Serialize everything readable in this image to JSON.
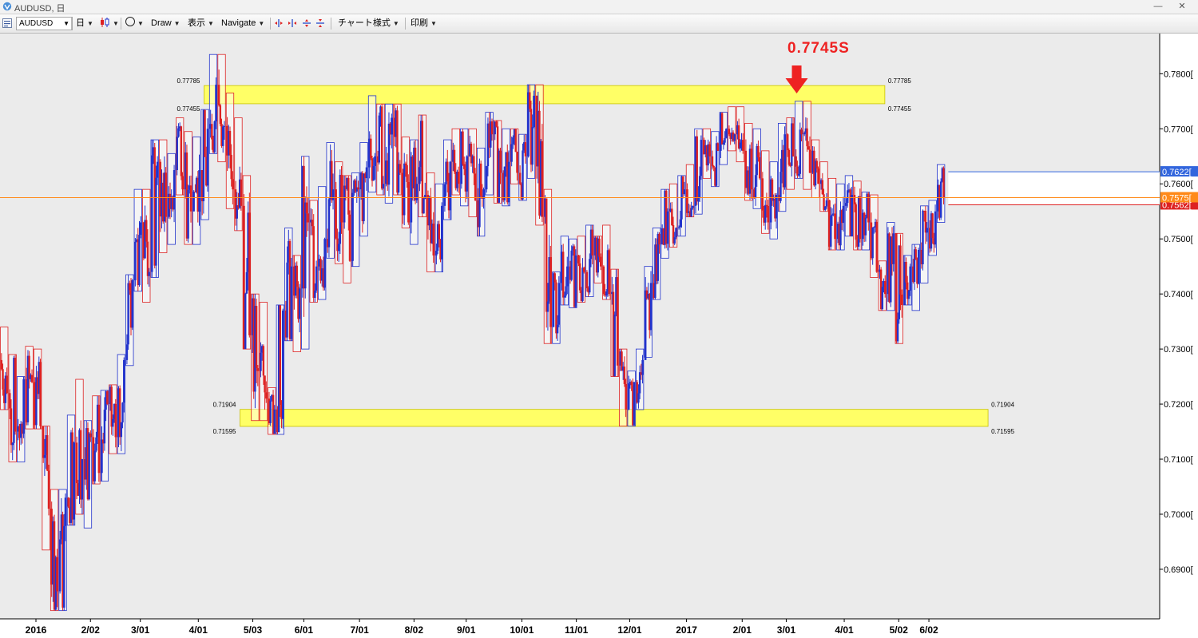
{
  "window": {
    "title": "AUDUSD, 日",
    "minimize": "—",
    "close": "✕"
  },
  "toolbar": {
    "symbol": "AUDUSD",
    "timeframe": "日",
    "draw": "Draw",
    "display": "表示",
    "navigate": "Navigate",
    "chart_style": "チャート様式",
    "print": "印刷"
  },
  "annotations": {
    "arrow_label": "0.7745S"
  },
  "colors": {
    "up": "#2233cc",
    "down": "#dd2222",
    "zone": "#ffff66",
    "price_line": "#ff8a1a",
    "current_label": "#ff8a1a",
    "high_label": "#3366dd",
    "low_label": "#dd2222",
    "arrow": "#ee2222"
  },
  "chart_data": {
    "type": "candlestick",
    "title": "",
    "ylim": [
      0.681,
      0.787
    ],
    "y_ticks": [
      "0.6900",
      "0.7000",
      "0.7100",
      "0.7200",
      "0.7300",
      "0.7400",
      "0.7500",
      "0.7600",
      "0.7700",
      "0.7800"
    ],
    "x_ticks": [
      "2016",
      "2/02",
      "3/01",
      "4/01",
      "5/03",
      "6/01",
      "7/01",
      "8/02",
      "9/01",
      "10/01",
      "11/01",
      "12/01",
      "2017",
      "2/01",
      "3/01",
      "4/01",
      "5/02",
      "6/02"
    ],
    "zones": [
      {
        "upper": 0.77785,
        "lower": 0.77455,
        "upper_label": "0.77785",
        "lower_label": "0.77455",
        "from": "4/01",
        "to": "4/01-2017"
      },
      {
        "upper": 0.71904,
        "lower": 0.71595,
        "upper_label": "0.71904",
        "lower_label": "0.71595",
        "from": "5/03",
        "to": "5/02-2017"
      }
    ],
    "current_price": 0.7575,
    "price_labels": {
      "high": "0.7622[",
      "current": "0.7575[",
      "low": "0.7562["
    },
    "last_range": {
      "high": 0.7622,
      "low": 0.7562
    },
    "weekly_ranges": [
      {
        "o": 0.728,
        "h": 0.734,
        "l": 0.719,
        "c": 0.722
      },
      {
        "o": 0.722,
        "h": 0.729,
        "l": 0.7095,
        "c": 0.715
      },
      {
        "o": 0.715,
        "h": 0.725,
        "l": 0.7095,
        "c": 0.7245
      },
      {
        "o": 0.7245,
        "h": 0.7305,
        "l": 0.7155,
        "c": 0.724
      },
      {
        "o": 0.724,
        "h": 0.73,
        "l": 0.7155,
        "c": 0.716
      },
      {
        "o": 0.716,
        "h": 0.716,
        "l": 0.6935,
        "c": 0.701
      },
      {
        "o": 0.701,
        "h": 0.7045,
        "l": 0.6825,
        "c": 0.686
      },
      {
        "o": 0.686,
        "h": 0.7045,
        "l": 0.6825,
        "c": 0.703
      },
      {
        "o": 0.703,
        "h": 0.718,
        "l": 0.698,
        "c": 0.713
      },
      {
        "o": 0.713,
        "h": 0.7245,
        "l": 0.7,
        "c": 0.71
      },
      {
        "o": 0.71,
        "h": 0.717,
        "l": 0.6975,
        "c": 0.714
      },
      {
        "o": 0.714,
        "h": 0.7215,
        "l": 0.7055,
        "c": 0.7075
      },
      {
        "o": 0.7075,
        "h": 0.7225,
        "l": 0.706,
        "c": 0.72
      },
      {
        "o": 0.72,
        "h": 0.7235,
        "l": 0.711,
        "c": 0.714
      },
      {
        "o": 0.714,
        "h": 0.729,
        "l": 0.711,
        "c": 0.728
      },
      {
        "o": 0.728,
        "h": 0.7435,
        "l": 0.727,
        "c": 0.7425
      },
      {
        "o": 0.7425,
        "h": 0.759,
        "l": 0.7405,
        "c": 0.753
      },
      {
        "o": 0.753,
        "h": 0.759,
        "l": 0.7385,
        "c": 0.744
      },
      {
        "o": 0.744,
        "h": 0.768,
        "l": 0.743,
        "c": 0.764
      },
      {
        "o": 0.764,
        "h": 0.768,
        "l": 0.7475,
        "c": 0.754
      },
      {
        "o": 0.754,
        "h": 0.7655,
        "l": 0.749,
        "c": 0.7625
      },
      {
        "o": 0.7625,
        "h": 0.772,
        "l": 0.758,
        "c": 0.759
      },
      {
        "o": 0.759,
        "h": 0.7695,
        "l": 0.749,
        "c": 0.755
      },
      {
        "o": 0.755,
        "h": 0.7685,
        "l": 0.749,
        "c": 0.7625
      },
      {
        "o": 0.7625,
        "h": 0.7735,
        "l": 0.7535,
        "c": 0.77
      },
      {
        "o": 0.77,
        "h": 0.7835,
        "l": 0.7655,
        "c": 0.778
      },
      {
        "o": 0.778,
        "h": 0.7835,
        "l": 0.764,
        "c": 0.7705
      },
      {
        "o": 0.7705,
        "h": 0.7765,
        "l": 0.7555,
        "c": 0.759
      },
      {
        "o": 0.759,
        "h": 0.772,
        "l": 0.7515,
        "c": 0.756
      },
      {
        "o": 0.756,
        "h": 0.7615,
        "l": 0.73,
        "c": 0.7325
      },
      {
        "o": 0.7325,
        "h": 0.74,
        "l": 0.717,
        "c": 0.726
      },
      {
        "o": 0.726,
        "h": 0.7385,
        "l": 0.717,
        "c": 0.721
      },
      {
        "o": 0.721,
        "h": 0.723,
        "l": 0.7145,
        "c": 0.719
      },
      {
        "o": 0.719,
        "h": 0.738,
        "l": 0.7145,
        "c": 0.737
      },
      {
        "o": 0.737,
        "h": 0.752,
        "l": 0.7315,
        "c": 0.745
      },
      {
        "o": 0.745,
        "h": 0.747,
        "l": 0.7295,
        "c": 0.741
      },
      {
        "o": 0.741,
        "h": 0.765,
        "l": 0.73,
        "c": 0.753
      },
      {
        "o": 0.753,
        "h": 0.757,
        "l": 0.7385,
        "c": 0.745
      },
      {
        "o": 0.745,
        "h": 0.7595,
        "l": 0.739,
        "c": 0.75
      },
      {
        "o": 0.75,
        "h": 0.7675,
        "l": 0.7465,
        "c": 0.759
      },
      {
        "o": 0.759,
        "h": 0.764,
        "l": 0.7455,
        "c": 0.753
      },
      {
        "o": 0.753,
        "h": 0.7615,
        "l": 0.742,
        "c": 0.746
      },
      {
        "o": 0.746,
        "h": 0.762,
        "l": 0.745,
        "c": 0.759
      },
      {
        "o": 0.759,
        "h": 0.7675,
        "l": 0.7505,
        "c": 0.763
      },
      {
        "o": 0.763,
        "h": 0.776,
        "l": 0.7585,
        "c": 0.765
      },
      {
        "o": 0.765,
        "h": 0.7745,
        "l": 0.758,
        "c": 0.76
      },
      {
        "o": 0.76,
        "h": 0.7745,
        "l": 0.7565,
        "c": 0.772
      },
      {
        "o": 0.772,
        "h": 0.7745,
        "l": 0.758,
        "c": 0.762
      },
      {
        "o": 0.762,
        "h": 0.7685,
        "l": 0.752,
        "c": 0.753
      },
      {
        "o": 0.753,
        "h": 0.768,
        "l": 0.749,
        "c": 0.76
      },
      {
        "o": 0.76,
        "h": 0.7725,
        "l": 0.754,
        "c": 0.758
      },
      {
        "o": 0.758,
        "h": 0.762,
        "l": 0.744,
        "c": 0.747
      },
      {
        "o": 0.747,
        "h": 0.76,
        "l": 0.744,
        "c": 0.756
      },
      {
        "o": 0.756,
        "h": 0.768,
        "l": 0.7535,
        "c": 0.764
      },
      {
        "o": 0.764,
        "h": 0.77,
        "l": 0.758,
        "c": 0.76
      },
      {
        "o": 0.76,
        "h": 0.77,
        "l": 0.756,
        "c": 0.765
      },
      {
        "o": 0.765,
        "h": 0.77,
        "l": 0.754,
        "c": 0.757
      },
      {
        "o": 0.757,
        "h": 0.7665,
        "l": 0.7505,
        "c": 0.759
      },
      {
        "o": 0.759,
        "h": 0.773,
        "l": 0.758,
        "c": 0.769
      },
      {
        "o": 0.769,
        "h": 0.7715,
        "l": 0.7565,
        "c": 0.762
      },
      {
        "o": 0.762,
        "h": 0.77,
        "l": 0.756,
        "c": 0.764
      },
      {
        "o": 0.764,
        "h": 0.77,
        "l": 0.76,
        "c": 0.762
      },
      {
        "o": 0.762,
        "h": 0.769,
        "l": 0.757,
        "c": 0.765
      },
      {
        "o": 0.765,
        "h": 0.778,
        "l": 0.761,
        "c": 0.776
      },
      {
        "o": 0.776,
        "h": 0.778,
        "l": 0.7525,
        "c": 0.754
      },
      {
        "o": 0.754,
        "h": 0.759,
        "l": 0.731,
        "c": 0.734
      },
      {
        "o": 0.734,
        "h": 0.744,
        "l": 0.731,
        "c": 0.742
      },
      {
        "o": 0.742,
        "h": 0.7505,
        "l": 0.738,
        "c": 0.745
      },
      {
        "o": 0.745,
        "h": 0.75,
        "l": 0.7375,
        "c": 0.747
      },
      {
        "o": 0.747,
        "h": 0.7505,
        "l": 0.7385,
        "c": 0.744
      },
      {
        "o": 0.744,
        "h": 0.7525,
        "l": 0.7395,
        "c": 0.747
      },
      {
        "o": 0.747,
        "h": 0.7505,
        "l": 0.742,
        "c": 0.745
      },
      {
        "o": 0.745,
        "h": 0.7525,
        "l": 0.739,
        "c": 0.74
      },
      {
        "o": 0.74,
        "h": 0.7445,
        "l": 0.725,
        "c": 0.727
      },
      {
        "o": 0.727,
        "h": 0.73,
        "l": 0.716,
        "c": 0.719
      },
      {
        "o": 0.719,
        "h": 0.726,
        "l": 0.716,
        "c": 0.724
      },
      {
        "o": 0.724,
        "h": 0.73,
        "l": 0.719,
        "c": 0.728
      },
      {
        "o": 0.728,
        "h": 0.745,
        "l": 0.7285,
        "c": 0.742
      },
      {
        "o": 0.742,
        "h": 0.752,
        "l": 0.739,
        "c": 0.749
      },
      {
        "o": 0.749,
        "h": 0.759,
        "l": 0.7465,
        "c": 0.755
      },
      {
        "o": 0.755,
        "h": 0.76,
        "l": 0.7485,
        "c": 0.752
      },
      {
        "o": 0.752,
        "h": 0.7615,
        "l": 0.7505,
        "c": 0.759
      },
      {
        "o": 0.759,
        "h": 0.7635,
        "l": 0.754,
        "c": 0.756
      },
      {
        "o": 0.756,
        "h": 0.77,
        "l": 0.7545,
        "c": 0.768
      },
      {
        "o": 0.768,
        "h": 0.77,
        "l": 0.761,
        "c": 0.765
      },
      {
        "o": 0.765,
        "h": 0.7695,
        "l": 0.7595,
        "c": 0.766
      },
      {
        "o": 0.766,
        "h": 0.773,
        "l": 0.7635,
        "c": 0.77
      },
      {
        "o": 0.77,
        "h": 0.774,
        "l": 0.766,
        "c": 0.769
      },
      {
        "o": 0.769,
        "h": 0.774,
        "l": 0.764,
        "c": 0.766
      },
      {
        "o": 0.766,
        "h": 0.771,
        "l": 0.757,
        "c": 0.759
      },
      {
        "o": 0.759,
        "h": 0.77,
        "l": 0.7555,
        "c": 0.761
      },
      {
        "o": 0.761,
        "h": 0.766,
        "l": 0.751,
        "c": 0.753
      },
      {
        "o": 0.753,
        "h": 0.764,
        "l": 0.75,
        "c": 0.758
      },
      {
        "o": 0.758,
        "h": 0.771,
        "l": 0.755,
        "c": 0.769
      },
      {
        "o": 0.769,
        "h": 0.772,
        "l": 0.759,
        "c": 0.765
      },
      {
        "o": 0.765,
        "h": 0.775,
        "l": 0.761,
        "c": 0.769
      },
      {
        "o": 0.769,
        "h": 0.775,
        "l": 0.759,
        "c": 0.762
      },
      {
        "o": 0.762,
        "h": 0.768,
        "l": 0.7575,
        "c": 0.76
      },
      {
        "o": 0.76,
        "h": 0.764,
        "l": 0.755,
        "c": 0.757
      },
      {
        "o": 0.757,
        "h": 0.761,
        "l": 0.748,
        "c": 0.75
      },
      {
        "o": 0.75,
        "h": 0.76,
        "l": 0.748,
        "c": 0.756
      },
      {
        "o": 0.756,
        "h": 0.7615,
        "l": 0.7505,
        "c": 0.758
      },
      {
        "o": 0.758,
        "h": 0.7605,
        "l": 0.748,
        "c": 0.75
      },
      {
        "o": 0.75,
        "h": 0.7585,
        "l": 0.748,
        "c": 0.753
      },
      {
        "o": 0.753,
        "h": 0.758,
        "l": 0.743,
        "c": 0.744
      },
      {
        "o": 0.744,
        "h": 0.746,
        "l": 0.737,
        "c": 0.74
      },
      {
        "o": 0.74,
        "h": 0.753,
        "l": 0.737,
        "c": 0.751
      },
      {
        "o": 0.751,
        "h": 0.751,
        "l": 0.731,
        "c": 0.738
      },
      {
        "o": 0.738,
        "h": 0.747,
        "l": 0.738,
        "c": 0.745
      },
      {
        "o": 0.745,
        "h": 0.749,
        "l": 0.737,
        "c": 0.748
      },
      {
        "o": 0.748,
        "h": 0.756,
        "l": 0.742,
        "c": 0.752
      },
      {
        "o": 0.752,
        "h": 0.757,
        "l": 0.747,
        "c": 0.755
      },
      {
        "o": 0.755,
        "h": 0.7635,
        "l": 0.753,
        "c": 0.7575
      }
    ]
  }
}
